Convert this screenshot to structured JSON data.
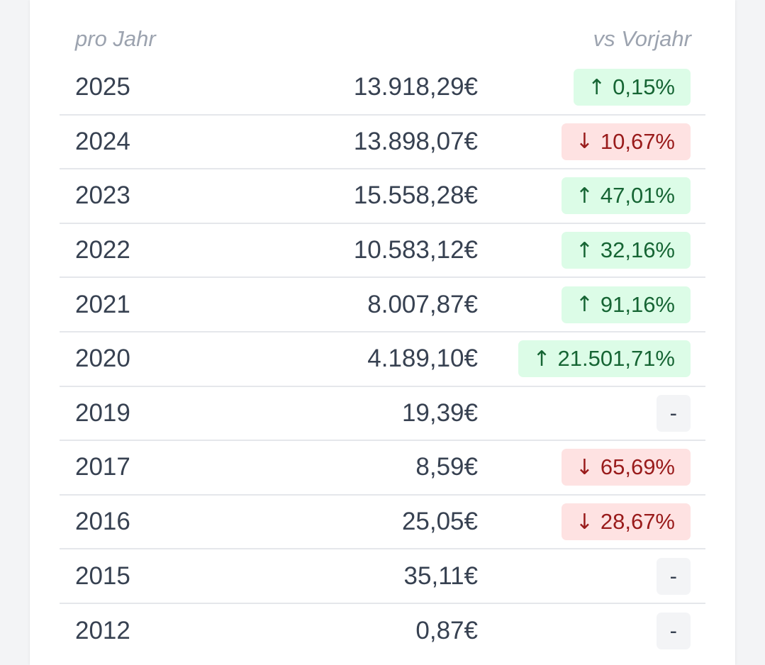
{
  "table": {
    "header_left": "pro Jahr",
    "header_right": "vs Vorjahr",
    "rows": [
      {
        "year": "2025",
        "amount": "13.918,29€",
        "change": "0,15%",
        "trend": "up",
        "arrow": "↑"
      },
      {
        "year": "2024",
        "amount": "13.898,07€",
        "change": "10,67%",
        "trend": "down",
        "arrow": "↓"
      },
      {
        "year": "2023",
        "amount": "15.558,28€",
        "change": "47,01%",
        "trend": "up",
        "arrow": "↑"
      },
      {
        "year": "2022",
        "amount": "10.583,12€",
        "change": "32,16%",
        "trend": "up",
        "arrow": "↑"
      },
      {
        "year": "2021",
        "amount": "8.007,87€",
        "change": "91,16%",
        "trend": "up",
        "arrow": "↑"
      },
      {
        "year": "2020",
        "amount": "4.189,10€",
        "change": "21.501,71%",
        "trend": "up",
        "arrow": "↑"
      },
      {
        "year": "2019",
        "amount": "19,39€",
        "change": "-",
        "trend": "none",
        "arrow": ""
      },
      {
        "year": "2017",
        "amount": "8,59€",
        "change": "65,69%",
        "trend": "down",
        "arrow": "↓"
      },
      {
        "year": "2016",
        "amount": "25,05€",
        "change": "28,67%",
        "trend": "down",
        "arrow": "↓"
      },
      {
        "year": "2015",
        "amount": "35,11€",
        "change": "-",
        "trend": "none",
        "arrow": ""
      },
      {
        "year": "2012",
        "amount": "0,87€",
        "change": "-",
        "trend": "none",
        "arrow": ""
      }
    ]
  },
  "colors": {
    "up_bg": "#dcfce7",
    "up_text": "#166534",
    "down_bg": "#fee2e2",
    "down_text": "#991b1b",
    "neutral_bg": "#f3f4f6"
  }
}
